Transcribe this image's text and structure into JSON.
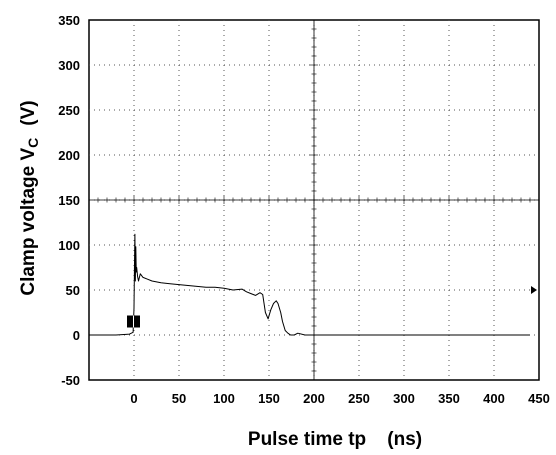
{
  "chart_data": {
    "type": "line",
    "xlabel": "Pulse time tp    (ns)",
    "ylabel": "Clamp voltage V",
    "ylabel_subscript": "C",
    "ylabel_unit": "(V)",
    "xlim": [
      -50,
      450
    ],
    "ylim": [
      -50,
      350
    ],
    "x_ticks": [
      0,
      50,
      100,
      150,
      200,
      250,
      300,
      350,
      400,
      450
    ],
    "y_ticks": [
      -50,
      0,
      50,
      100,
      150,
      200,
      250,
      300,
      350
    ],
    "grid": "dotted",
    "center_crosshair": {
      "x": 200,
      "y": 150
    },
    "trigger_marker_y": 50,
    "ground_marker": {
      "x": 0,
      "y": 15
    },
    "series": [
      {
        "color": "#000000",
        "x": [
          -50,
          -20,
          -5,
          -1,
          0,
          0.5,
          1,
          1.5,
          2,
          2.5,
          3,
          4,
          5,
          7,
          10,
          15,
          20,
          30,
          40,
          50,
          60,
          70,
          80,
          90,
          100,
          110,
          120,
          125,
          130,
          135,
          140,
          143,
          146,
          149,
          152,
          155,
          158,
          160,
          163,
          165,
          168,
          171,
          174,
          178,
          182,
          190,
          200,
          250,
          300,
          350,
          400,
          440
        ],
        "y": [
          0,
          0,
          1,
          3,
          30,
          75,
          112,
          60,
          98,
          70,
          75,
          65,
          60,
          68,
          64,
          62,
          60,
          58,
          57,
          56,
          55,
          54,
          53,
          53,
          52,
          50,
          51,
          48,
          46,
          44,
          47,
          45,
          25,
          18,
          28,
          35,
          38,
          35,
          25,
          15,
          5,
          2,
          0,
          0,
          2,
          0,
          0,
          0,
          0,
          0,
          0,
          0
        ]
      }
    ]
  }
}
